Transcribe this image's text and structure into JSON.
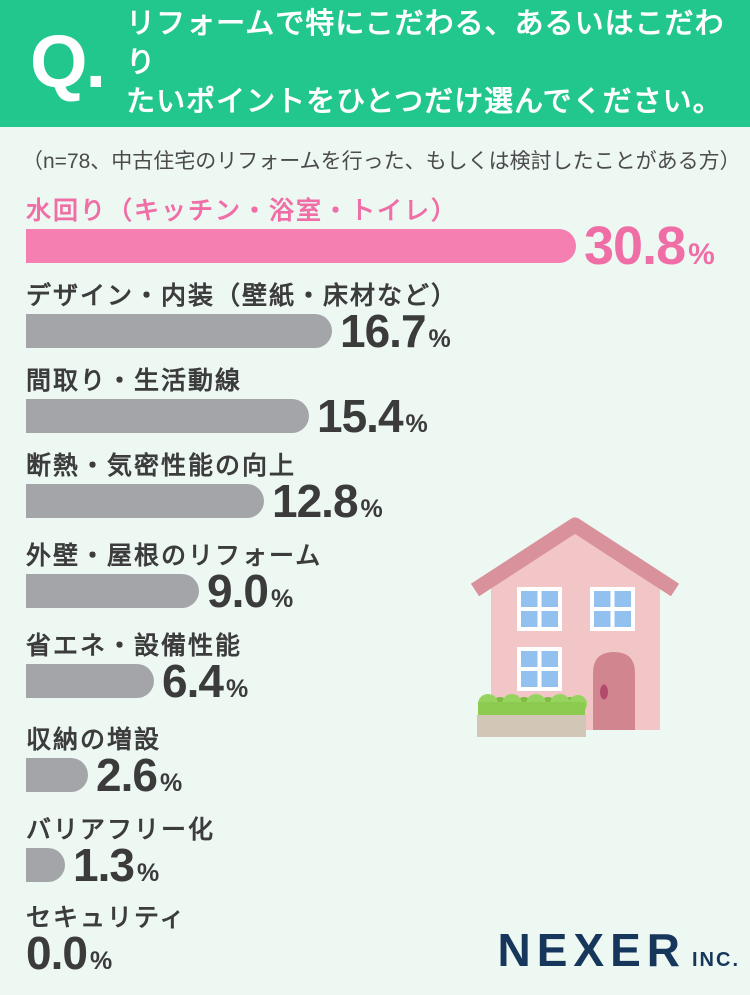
{
  "header": {
    "q_mark": "Q.",
    "question_line1": "リフォームで特にこだわる、あるいはこだわり",
    "question_line2": "たいポイントをひとつだけ選んでください。"
  },
  "note": "（n=78、中古住宅のリフォームを行った、もしくは検討したことがある方）",
  "chart_data": {
    "type": "bar",
    "orientation": "horizontal",
    "title": "リフォームで特にこだわる、あるいはこだわりたいポイントをひとつだけ選んでください。",
    "unit": "%",
    "categories": [
      "水回り（キッチン・浴室・トイレ）",
      "デザイン・内装（壁紙・床材など）",
      "間取り・生活動線",
      "断熱・気密性能の向上",
      "外壁・屋根のリフォーム",
      "省エネ・設備性能",
      "収納の増設",
      "バリアフリー化",
      "セキュリティ"
    ],
    "values": [
      30.8,
      16.7,
      15.4,
      12.8,
      9.0,
      6.4,
      2.6,
      1.3,
      0.0
    ],
    "xlim": [
      0,
      30.8
    ],
    "legend": false,
    "grid": false,
    "highlight_index": 0,
    "colors": {
      "highlight_bar": "#f47fb0",
      "highlight_text": "#f06ea6",
      "default_bar": "#a4a5a8",
      "value_text": "#3b3b3b"
    }
  },
  "theme": {
    "header_green": "#22c78d",
    "background_mint": "#edf8f3",
    "logo_navy": "#17365c"
  },
  "illustration": {
    "name": "house-icon"
  },
  "footer": {
    "brand": "NEXER",
    "brand_suffix": "INC."
  }
}
